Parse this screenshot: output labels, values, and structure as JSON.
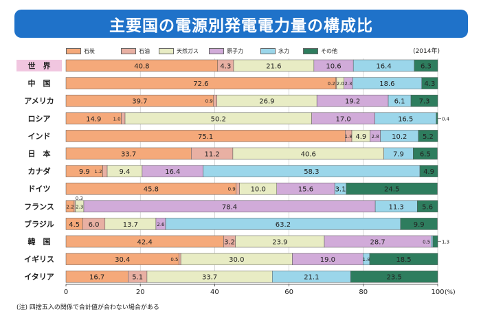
{
  "title": "主要国の電源別発電電力量の構成比",
  "year": "(2014年)",
  "note": "(注) 四捨五入の関係で合計値が合わない場合がある",
  "colors": {
    "coal": "#f5a97a",
    "oil": "#e8b0a3",
    "gas": "#e8ecc4",
    "nuclear": "#d1abd9",
    "hydro": "#9bd6ea",
    "other": "#2e7d5e",
    "highlight_label_bg": "#f1c6e0",
    "title_bg": "#1f72c9"
  },
  "chart_data": {
    "type": "bar",
    "orientation": "horizontal",
    "stacked": true,
    "series": [
      {
        "name": "石炭",
        "key": "coal",
        "values": [
          40.8,
          72.6,
          39.7,
          14.9,
          75.1,
          33.7,
          9.9,
          45.8,
          2.2,
          4.5,
          42.4,
          30.4,
          16.7
        ]
      },
      {
        "name": "石油",
        "key": "oil",
        "values": [
          4.3,
          0.2,
          0.9,
          1.0,
          1.8,
          11.2,
          1.2,
          0.9,
          0.3,
          6.0,
          3.2,
          0.5,
          5.1
        ]
      },
      {
        "name": "天然ガス",
        "key": "gas",
        "values": [
          21.6,
          2.0,
          26.9,
          50.2,
          4.9,
          40.6,
          9.4,
          10.0,
          2.3,
          13.7,
          23.9,
          30.0,
          33.7
        ]
      },
      {
        "name": "原子力",
        "key": "nuclear",
        "values": [
          10.6,
          2.3,
          19.2,
          17.0,
          2.8,
          0,
          16.4,
          15.6,
          78.4,
          2.6,
          28.7,
          19.0,
          0
        ]
      },
      {
        "name": "水力",
        "key": "hydro",
        "values": [
          16.4,
          18.6,
          6.1,
          16.5,
          10.2,
          7.9,
          58.3,
          3.1,
          11.3,
          63.2,
          0.5,
          1.8,
          21.1
        ]
      },
      {
        "name": "その他",
        "key": "other",
        "values": [
          6.3,
          4.3,
          7.3,
          0.4,
          5.2,
          6.5,
          4.9,
          24.5,
          5.6,
          9.9,
          1.3,
          18.5,
          23.5
        ]
      }
    ],
    "categories": [
      "世　界",
      "中　国",
      "アメリカ",
      "ロシア",
      "インド",
      "日　本",
      "カナダ",
      "ドイツ",
      "フランス",
      "ブラジル",
      "韓　国",
      "イギリス",
      "イタリア"
    ],
    "x_ticks": [
      "0",
      "20",
      "40",
      "60",
      "80",
      "100"
    ],
    "x_unit": "(%)",
    "xlim": [
      0,
      100
    ],
    "legend_position": "top",
    "highlight_category": 0,
    "outside_labels": [
      {
        "row": 3,
        "series": 5,
        "text": "0.4"
      },
      {
        "row": 10,
        "series": 5,
        "text": "1.3"
      }
    ],
    "inside_small_labels": [
      {
        "row": 1,
        "series": 1,
        "text": "0.2"
      },
      {
        "row": 1,
        "series": 2,
        "text": "2.0"
      },
      {
        "row": 1,
        "series": 3,
        "text": "2.3"
      },
      {
        "row": 2,
        "series": 1,
        "text": "0.9"
      },
      {
        "row": 3,
        "series": 1,
        "text": "1.0"
      },
      {
        "row": 4,
        "series": 1,
        "text": "1.8"
      },
      {
        "row": 4,
        "series": 3,
        "text": "2.8"
      },
      {
        "row": 6,
        "series": 1,
        "text": "1.2"
      },
      {
        "row": 7,
        "series": 1,
        "text": "0.9"
      },
      {
        "row": 8,
        "series": 0,
        "text": "2.2"
      },
      {
        "row": 8,
        "series": 2,
        "text": "2.3"
      },
      {
        "row": 9,
        "series": 3,
        "text": "2.6"
      },
      {
        "row": 10,
        "series": 4,
        "text": "0.5"
      },
      {
        "row": 11,
        "series": 1,
        "text": "0.5"
      },
      {
        "row": 11,
        "series": 4,
        "text": "1.8"
      }
    ],
    "above_labels": [
      {
        "row": 8,
        "series": 1,
        "text": "0.3"
      }
    ]
  }
}
